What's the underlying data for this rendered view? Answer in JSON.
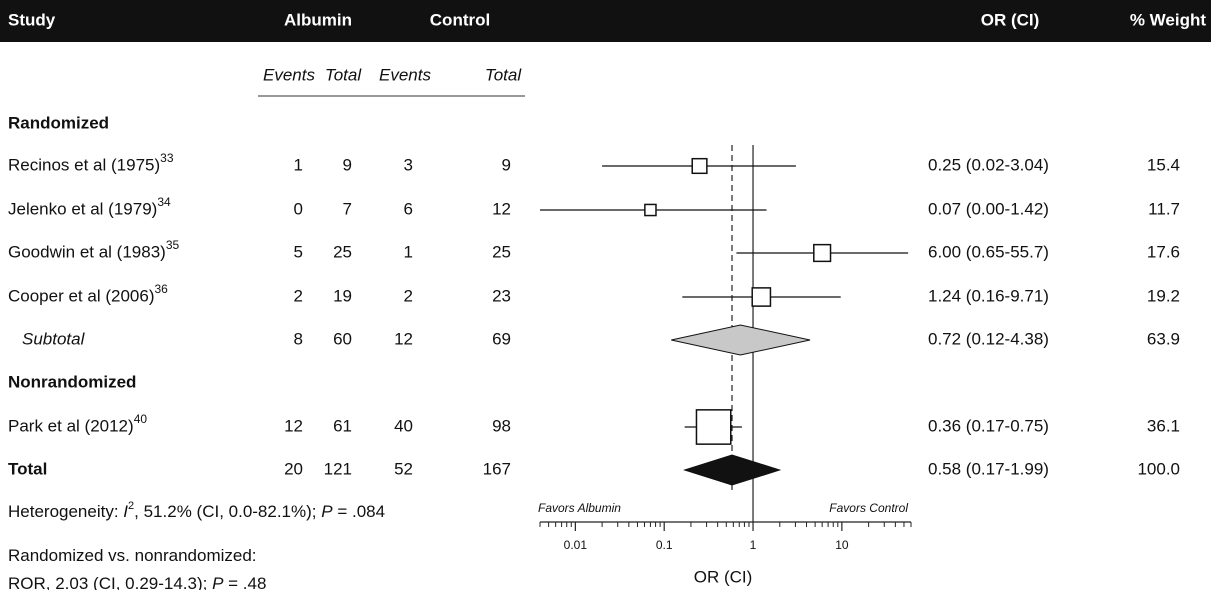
{
  "chart_data": {
    "type": "forest",
    "columns": {
      "study": "Study",
      "albumin": "Albumin",
      "control": "Control",
      "or": "OR (CI)",
      "weight": "% Weight",
      "subheaders": [
        "Events",
        "Total",
        "Events",
        "Total"
      ]
    },
    "rows": [
      {
        "kind": "section",
        "name": "Randomized"
      },
      {
        "kind": "study",
        "name": "Recinos et al (1975)",
        "ref": "33",
        "values": [
          1,
          9,
          3,
          9
        ],
        "or": 0.25,
        "ci": [
          0.02,
          3.04
        ],
        "or_label": "0.25 (0.02-3.04)",
        "weight": "15.4"
      },
      {
        "kind": "study",
        "name": "Jelenko et al (1979)",
        "ref": "34",
        "values": [
          0,
          7,
          6,
          12
        ],
        "or": 0.07,
        "ci": [
          0.0,
          1.42
        ],
        "or_label": "0.07 (0.00-1.42)",
        "weight": "11.7"
      },
      {
        "kind": "study",
        "name": "Goodwin et al (1983)",
        "ref": "35",
        "values": [
          5,
          25,
          1,
          25
        ],
        "or": 6.0,
        "ci": [
          0.65,
          55.7
        ],
        "or_label": "6.00 (0.65-55.7)",
        "weight": "17.6"
      },
      {
        "kind": "study",
        "name": "Cooper et al (2006)",
        "ref": "36",
        "values": [
          2,
          19,
          2,
          23
        ],
        "or": 1.24,
        "ci": [
          0.16,
          9.71
        ],
        "or_label": "1.24 (0.16-9.71)",
        "weight": "19.2"
      },
      {
        "kind": "subtotal",
        "name": "Subtotal",
        "values": [
          8,
          60,
          12,
          69
        ],
        "or": 0.72,
        "ci": [
          0.12,
          4.38
        ],
        "or_label": "0.72 (0.12-4.38)",
        "weight": "63.9"
      },
      {
        "kind": "section",
        "name": "Nonrandomized"
      },
      {
        "kind": "study",
        "name": "Park et al (2012)",
        "ref": "40",
        "values": [
          12,
          61,
          40,
          98
        ],
        "or": 0.36,
        "ci": [
          0.17,
          0.75
        ],
        "or_label": "0.36 (0.17-0.75)",
        "weight": "36.1"
      },
      {
        "kind": "total",
        "name": "Total",
        "values": [
          20,
          121,
          52,
          167
        ],
        "or": 0.58,
        "ci": [
          0.17,
          1.99
        ],
        "or_label": "0.58 (0.17-1.99)",
        "weight": "100.0"
      }
    ],
    "xlabel": "OR (CI)",
    "favors": [
      "Favors Albumin",
      "Favors Control"
    ],
    "log_x": true,
    "xlim": [
      0.004,
      60
    ],
    "xticks": [
      0.01,
      0.1,
      1,
      10
    ],
    "xminorticks": [
      0.004,
      0.005,
      0.006,
      0.007,
      0.008,
      0.009,
      0.02,
      0.03,
      0.04,
      0.05,
      0.06,
      0.07,
      0.08,
      0.09,
      0.2,
      0.3,
      0.4,
      0.5,
      0.6,
      0.7,
      0.8,
      0.9,
      2,
      3,
      4,
      5,
      6,
      7,
      8,
      9,
      20,
      30,
      40,
      50,
      60
    ],
    "reference_line": 1,
    "footnotes": [
      [
        {
          "text": "Heterogeneity: "
        },
        {
          "text": "I",
          "italic": true
        },
        {
          "text": "2",
          "sup": true
        },
        {
          "text": ", 51.2% (CI, 0.0-82.1%); "
        },
        {
          "text": "P",
          "italic": true
        },
        {
          "text": " = .084"
        }
      ],
      [
        {
          "text": "Randomized vs. nonrandomized:"
        }
      ],
      [
        {
          "text": "ROR, 2.03 (CI, 0.29-14.3); "
        },
        {
          "text": "P",
          "italic": true
        },
        {
          "text": " = .48"
        }
      ]
    ]
  }
}
